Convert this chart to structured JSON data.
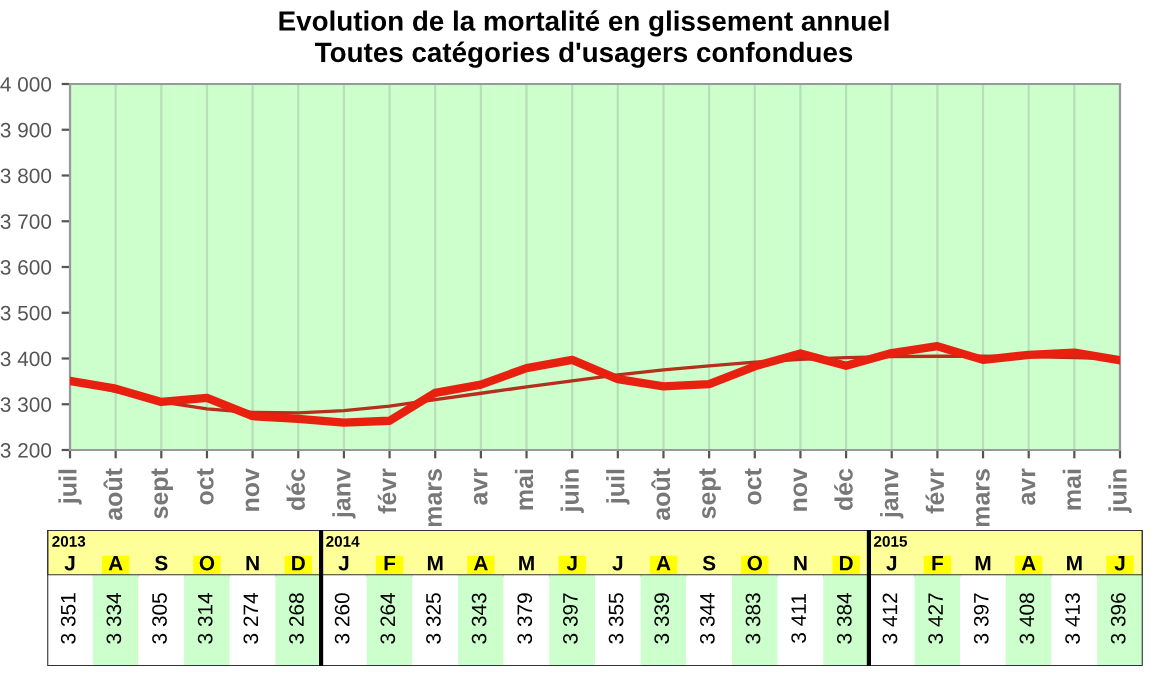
{
  "chart_data": {
    "type": "line",
    "title": "Evolution de la mortalité en glissement annuel\nToutes catégories d'usagers confondues",
    "categories": [
      "juil",
      "août",
      "sept",
      "oct",
      "nov",
      "déc",
      "janv",
      "févr",
      "mars",
      "avr",
      "mai",
      "juin",
      "juil",
      "août",
      "sept",
      "oct",
      "nov",
      "déc",
      "janv",
      "févr",
      "mars",
      "avr",
      "mai",
      "juin"
    ],
    "series": [
      {
        "color": "#e8200f",
        "line_style": "solid",
        "values": [
          3351,
          3334,
          3305,
          3314,
          3274,
          3268,
          3260,
          3264,
          3325,
          3343,
          3379,
          3397,
          3355,
          3339,
          3344,
          3383,
          3411,
          3384,
          3412,
          3427,
          3397,
          3408,
          3413,
          3396
        ],
        "value_labels": [
          "3 351",
          "3 334",
          "3 305",
          "3 314",
          "3 274",
          "3 268",
          "3 260",
          "3 264",
          "3 325",
          "3 343",
          "3 379",
          "3 397",
          "3 355",
          "3 339",
          "3 344",
          "3 383",
          "3 411",
          "3 384",
          "3 412",
          "3 427",
          "3 397",
          "3 408",
          "3 413",
          "3 396"
        ]
      },
      {
        "color": "#b5301c",
        "line_style": "solid",
        "values": [
          3352,
          3328,
          3305,
          3290,
          3282,
          3281,
          3286,
          3296,
          3310,
          3324,
          3338,
          3351,
          3364,
          3375,
          3384,
          3392,
          3398,
          3402,
          3404,
          3405,
          3405,
          3404,
          3402,
          3399
        ]
      }
    ],
    "ylim": [
      3200,
      4000
    ],
    "yticks": [
      {
        "value": 3200,
        "label": "3 200"
      },
      {
        "value": 3300,
        "label": "3 300"
      },
      {
        "value": 3400,
        "label": "3 400"
      },
      {
        "value": 3500,
        "label": "3 500"
      },
      {
        "value": 3600,
        "label": "3 600"
      },
      {
        "value": 3700,
        "label": "3 700"
      },
      {
        "value": 3800,
        "label": "3 800"
      },
      {
        "value": 3900,
        "label": "3 900"
      },
      {
        "value": 4000,
        "label": "4 000"
      }
    ],
    "grid": "x",
    "marker": "none",
    "legend": false,
    "annotations": [
      "2013",
      "J",
      "A",
      "S",
      "O",
      "N",
      "D",
      "2014",
      "J",
      "F",
      "M",
      "A",
      "M",
      "J",
      "J",
      "A",
      "S",
      "O",
      "N",
      "D",
      "2015",
      "J",
      "F",
      "M",
      "A",
      "M",
      "J"
    ]
  }
}
